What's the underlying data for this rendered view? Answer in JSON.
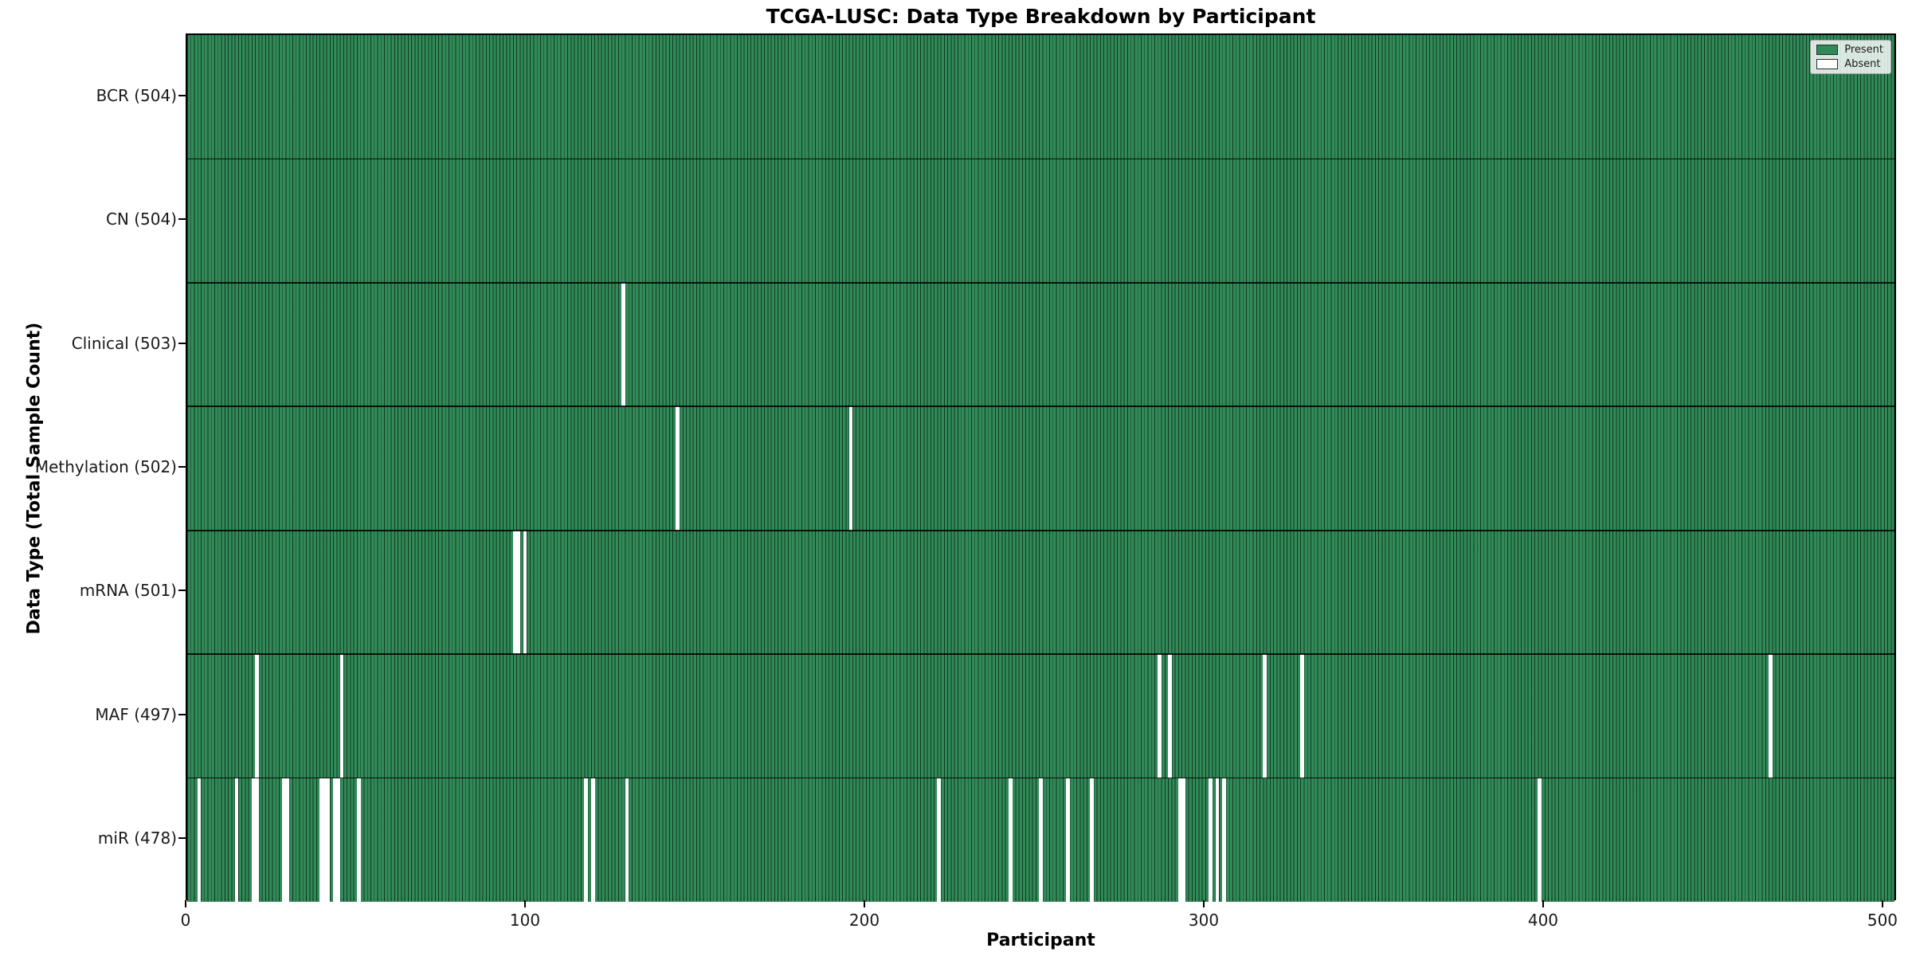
{
  "title": "TCGA-LUSC: Data Type Breakdown by Participant",
  "xlabel": "Participant",
  "ylabel": "Data Type (Total Sample Count)",
  "legend": {
    "items": [
      {
        "label": "Present",
        "color": "#2e8b57"
      },
      {
        "label": "Absent",
        "color": "#ffffff"
      }
    ]
  },
  "chart_data": {
    "type": "heatmap",
    "title": "TCGA-LUSC: Data Type Breakdown by Participant",
    "xlabel": "Participant",
    "ylabel": "Data Type (Total Sample Count)",
    "x_range": [
      0,
      504
    ],
    "x_ticks": [
      0,
      100,
      200,
      300,
      400,
      500
    ],
    "x_tick_labels": [
      "0",
      "100",
      "200",
      "300",
      "400",
      "500"
    ],
    "total_participants": 504,
    "legend_position": "upper right",
    "grid": false,
    "colors": {
      "present_fill": "#318a58",
      "present_edge": "#0d2a19",
      "absent_fill": "#ffffff",
      "legend_present": "#2e8b57",
      "spine": "#000000"
    },
    "rows": [
      {
        "label": "BCR (504)",
        "data_type": "BCR",
        "present_count": 504,
        "absent_participants": []
      },
      {
        "label": "CN (504)",
        "data_type": "CN",
        "present_count": 504,
        "absent_participants": []
      },
      {
        "label": "Clinical (503)",
        "data_type": "Clinical",
        "present_count": 503,
        "absent_participants": [
          128
        ]
      },
      {
        "label": "Methylation (502)",
        "data_type": "Methylation",
        "present_count": 502,
        "absent_participants": [
          144,
          195
        ]
      },
      {
        "label": "mRNA (501)",
        "data_type": "mRNA",
        "present_count": 501,
        "absent_participants": [
          96,
          97,
          99
        ]
      },
      {
        "label": "MAF (497)",
        "data_type": "MAF",
        "present_count": 497,
        "absent_participants": [
          20,
          45,
          286,
          289,
          317,
          328,
          466
        ]
      },
      {
        "label": "miR (478)",
        "data_type": "miR",
        "present_count": 478,
        "absent_participants": [
          3,
          14,
          19,
          20,
          28,
          29,
          39,
          40,
          41,
          43,
          44,
          50,
          117,
          119,
          129,
          221,
          242,
          251,
          259,
          266,
          292,
          293,
          301,
          303,
          305,
          398
        ]
      }
    ]
  }
}
